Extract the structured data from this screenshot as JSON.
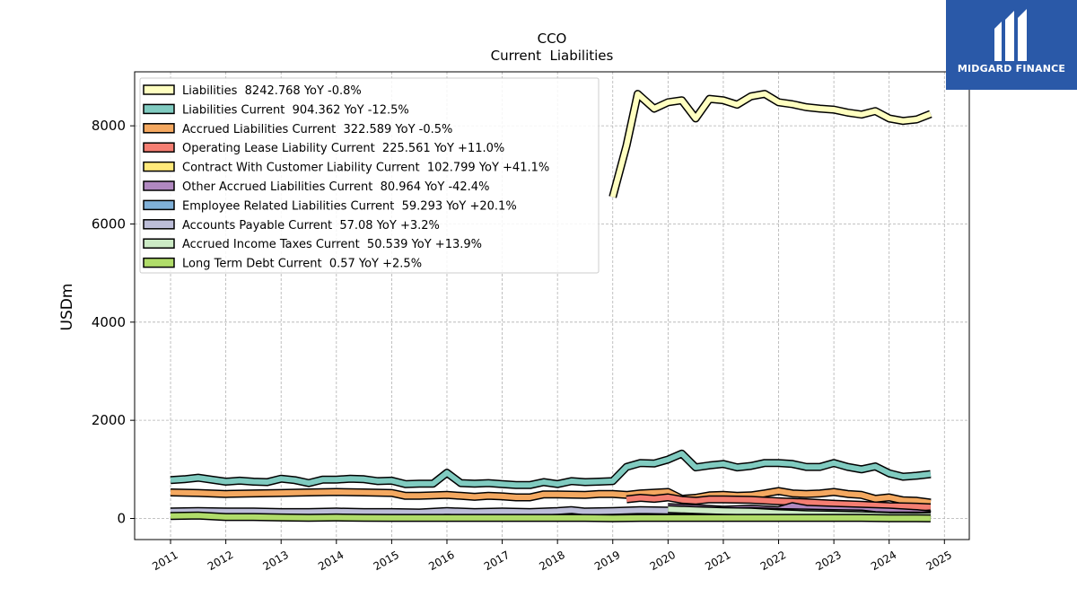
{
  "logo": {
    "text": "MIDGARD FINANCE",
    "icon": "midgard-m-logo-icon"
  },
  "chart_data": {
    "type": "line",
    "title": "CCO",
    "subtitle": "Current  Liabilities",
    "xlabel": "",
    "ylabel": "USDm",
    "xlim": [
      2010.35,
      2025.45
    ],
    "ylim": [
      -430,
      9100
    ],
    "x_ticks": [
      "2011",
      "2012",
      "2013",
      "2014",
      "2015",
      "2016",
      "2017",
      "2018",
      "2019",
      "2020",
      "2021",
      "2022",
      "2023",
      "2024",
      "2025"
    ],
    "y_ticks": [
      "0",
      "2000",
      "4000",
      "6000",
      "8000"
    ],
    "grid": true,
    "legend_position": "top-left",
    "series": [
      {
        "name": "Liabilities",
        "legend": "Liabilities  8242.768 YoY -0.8%",
        "color": "#ffffc0",
        "points": [
          [
            2019.0,
            6550
          ],
          [
            2019.25,
            7600
          ],
          [
            2019.45,
            8650
          ],
          [
            2019.6,
            8500
          ],
          [
            2019.75,
            8350
          ],
          [
            2020.0,
            8480
          ],
          [
            2020.25,
            8520
          ],
          [
            2020.5,
            8150
          ],
          [
            2020.75,
            8550
          ],
          [
            2021.0,
            8520
          ],
          [
            2021.25,
            8430
          ],
          [
            2021.5,
            8600
          ],
          [
            2021.75,
            8650
          ],
          [
            2022.0,
            8480
          ],
          [
            2022.25,
            8440
          ],
          [
            2022.5,
            8380
          ],
          [
            2022.75,
            8350
          ],
          [
            2023.0,
            8330
          ],
          [
            2023.25,
            8270
          ],
          [
            2023.5,
            8230
          ],
          [
            2023.75,
            8300
          ],
          [
            2024.0,
            8150
          ],
          [
            2024.25,
            8100
          ],
          [
            2024.5,
            8130
          ],
          [
            2024.75,
            8243
          ]
        ]
      },
      {
        "name": "Liabilities Current",
        "legend": "Liabilities Current  904.362 YoY -12.5%",
        "color": "#80cbc0",
        "points": [
          [
            2011.0,
            780
          ],
          [
            2011.25,
            800
          ],
          [
            2011.5,
            830
          ],
          [
            2011.75,
            790
          ],
          [
            2012.0,
            750
          ],
          [
            2012.25,
            770
          ],
          [
            2012.5,
            750
          ],
          [
            2012.75,
            740
          ],
          [
            2013.0,
            810
          ],
          [
            2013.25,
            780
          ],
          [
            2013.5,
            720
          ],
          [
            2013.75,
            790
          ],
          [
            2014.0,
            790
          ],
          [
            2014.25,
            810
          ],
          [
            2014.5,
            800
          ],
          [
            2014.75,
            760
          ],
          [
            2015.0,
            770
          ],
          [
            2015.25,
            700
          ],
          [
            2015.5,
            710
          ],
          [
            2015.75,
            710
          ],
          [
            2016.0,
            930
          ],
          [
            2016.25,
            720
          ],
          [
            2016.5,
            710
          ],
          [
            2016.75,
            720
          ],
          [
            2017.0,
            700
          ],
          [
            2017.25,
            680
          ],
          [
            2017.5,
            680
          ],
          [
            2017.75,
            740
          ],
          [
            2018.0,
            700
          ],
          [
            2018.25,
            760
          ],
          [
            2018.5,
            740
          ],
          [
            2018.75,
            750
          ],
          [
            2019.0,
            760
          ],
          [
            2019.25,
            1050
          ],
          [
            2019.5,
            1130
          ],
          [
            2019.75,
            1120
          ],
          [
            2020.0,
            1200
          ],
          [
            2020.25,
            1320
          ],
          [
            2020.5,
            1040
          ],
          [
            2020.75,
            1080
          ],
          [
            2021.0,
            1110
          ],
          [
            2021.25,
            1040
          ],
          [
            2021.5,
            1070
          ],
          [
            2021.75,
            1130
          ],
          [
            2022.0,
            1130
          ],
          [
            2022.25,
            1110
          ],
          [
            2022.5,
            1050
          ],
          [
            2022.75,
            1050
          ],
          [
            2023.0,
            1130
          ],
          [
            2023.25,
            1050
          ],
          [
            2023.5,
            1000
          ],
          [
            2023.75,
            1060
          ],
          [
            2024.0,
            920
          ],
          [
            2024.25,
            850
          ],
          [
            2024.5,
            870
          ],
          [
            2024.75,
            904
          ]
        ]
      },
      {
        "name": "Accrued Liabilities Current",
        "legend": "Accrued Liabilities Current  322.589 YoY -0.5%",
        "color": "#f4a860",
        "points": [
          [
            2011.0,
            530
          ],
          [
            2011.5,
            520
          ],
          [
            2012.0,
            500
          ],
          [
            2012.5,
            510
          ],
          [
            2013.0,
            520
          ],
          [
            2013.5,
            530
          ],
          [
            2014.0,
            540
          ],
          [
            2014.5,
            530
          ],
          [
            2015.0,
            520
          ],
          [
            2015.25,
            460
          ],
          [
            2015.5,
            460
          ],
          [
            2016.0,
            480
          ],
          [
            2016.25,
            460
          ],
          [
            2016.5,
            440
          ],
          [
            2016.75,
            460
          ],
          [
            2017.0,
            450
          ],
          [
            2017.25,
            430
          ],
          [
            2017.5,
            430
          ],
          [
            2017.75,
            490
          ],
          [
            2018.0,
            490
          ],
          [
            2018.5,
            480
          ],
          [
            2018.75,
            500
          ],
          [
            2019.0,
            500
          ],
          [
            2019.25,
            480
          ],
          [
            2019.5,
            510
          ],
          [
            2020.0,
            540
          ],
          [
            2020.25,
            400
          ],
          [
            2020.5,
            420
          ],
          [
            2020.75,
            470
          ],
          [
            2021.0,
            480
          ],
          [
            2021.25,
            460
          ],
          [
            2021.5,
            470
          ],
          [
            2021.75,
            510
          ],
          [
            2022.0,
            560
          ],
          [
            2022.25,
            510
          ],
          [
            2022.5,
            500
          ],
          [
            2022.75,
            510
          ],
          [
            2023.0,
            540
          ],
          [
            2023.25,
            500
          ],
          [
            2023.5,
            480
          ],
          [
            2023.75,
            400
          ],
          [
            2024.0,
            430
          ],
          [
            2024.25,
            370
          ],
          [
            2024.5,
            360
          ],
          [
            2024.75,
            323
          ]
        ]
      },
      {
        "name": "Operating Lease Liability Current",
        "legend": "Operating Lease Liability Current  225.561 YoY +11.0%",
        "color": "#f47e72",
        "points": [
          [
            2019.25,
            390
          ],
          [
            2019.5,
            420
          ],
          [
            2019.75,
            400
          ],
          [
            2020.0,
            430
          ],
          [
            2020.25,
            380
          ],
          [
            2020.5,
            360
          ],
          [
            2020.75,
            390
          ],
          [
            2021.0,
            390
          ],
          [
            2021.5,
            380
          ],
          [
            2022.0,
            350
          ],
          [
            2022.5,
            330
          ],
          [
            2023.0,
            300
          ],
          [
            2023.5,
            280
          ],
          [
            2024.0,
            250
          ],
          [
            2024.5,
            240
          ],
          [
            2024.75,
            226
          ]
        ]
      },
      {
        "name": "Contract With Customer Liability Current",
        "legend": "Contract With Customer Liability Current  102.799 YoY +41.1%",
        "color": "#ffe97a",
        "points": [
          [
            2018.0,
            120
          ],
          [
            2018.5,
            110
          ],
          [
            2019.0,
            100
          ],
          [
            2019.5,
            100
          ],
          [
            2020.0,
            110
          ],
          [
            2020.5,
            100
          ],
          [
            2021.0,
            95
          ],
          [
            2021.5,
            100
          ],
          [
            2022.0,
            110
          ],
          [
            2022.5,
            100
          ],
          [
            2023.0,
            90
          ],
          [
            2023.5,
            80
          ],
          [
            2024.0,
            75
          ],
          [
            2024.5,
            80
          ],
          [
            2024.75,
            103
          ]
        ]
      },
      {
        "name": "Other Accrued Liabilities Current",
        "legend": "Other Accrued Liabilities Current  80.964 YoY -42.4%",
        "color": "#b088c0",
        "points": [
          [
            2020.0,
            230
          ],
          [
            2020.5,
            210
          ],
          [
            2021.0,
            180
          ],
          [
            2021.5,
            200
          ],
          [
            2022.0,
            170
          ],
          [
            2022.25,
            250
          ],
          [
            2022.5,
            200
          ],
          [
            2023.0,
            180
          ],
          [
            2023.5,
            160
          ],
          [
            2024.0,
            140
          ],
          [
            2024.5,
            110
          ],
          [
            2024.75,
            81
          ]
        ]
      },
      {
        "name": "Employee Related Liabilities Current",
        "legend": "Employee Related Liabilities Current  59.293 YoY +20.1%",
        "color": "#7fb0d8",
        "points": [
          [
            2020.0,
            100
          ],
          [
            2020.5,
            90
          ],
          [
            2021.0,
            80
          ],
          [
            2021.5,
            85
          ],
          [
            2022.0,
            75
          ],
          [
            2022.5,
            70
          ],
          [
            2023.0,
            65
          ],
          [
            2023.5,
            60
          ],
          [
            2024.0,
            55
          ],
          [
            2024.5,
            50
          ],
          [
            2024.75,
            59
          ]
        ]
      },
      {
        "name": "Accounts Payable Current",
        "legend": "Accounts Payable Current  57.08 YoY +3.2%",
        "color": "#bcbdd8",
        "points": [
          [
            2011.0,
            140
          ],
          [
            2011.5,
            150
          ],
          [
            2012.0,
            140
          ],
          [
            2012.5,
            140
          ],
          [
            2013.0,
            130
          ],
          [
            2013.5,
            130
          ],
          [
            2014.0,
            140
          ],
          [
            2014.5,
            130
          ],
          [
            2015.0,
            130
          ],
          [
            2015.5,
            120
          ],
          [
            2016.0,
            150
          ],
          [
            2016.5,
            130
          ],
          [
            2017.0,
            140
          ],
          [
            2017.5,
            130
          ],
          [
            2018.0,
            150
          ],
          [
            2018.25,
            170
          ],
          [
            2018.5,
            140
          ],
          [
            2019.0,
            150
          ],
          [
            2019.5,
            170
          ],
          [
            2020.0,
            160
          ],
          [
            2020.5,
            150
          ],
          [
            2021.0,
            140
          ],
          [
            2021.5,
            150
          ],
          [
            2022.0,
            130
          ],
          [
            2022.5,
            120
          ],
          [
            2023.0,
            110
          ],
          [
            2023.5,
            100
          ],
          [
            2023.75,
            70
          ],
          [
            2024.0,
            60
          ],
          [
            2024.5,
            60
          ],
          [
            2024.75,
            57
          ]
        ]
      },
      {
        "name": "Accrued Income Taxes Current",
        "legend": "Accrued Income Taxes Current  50.539 YoY +13.9%",
        "color": "#ccebc5",
        "points": [
          [
            2020.0,
            190
          ],
          [
            2020.25,
            180
          ],
          [
            2020.5,
            170
          ],
          [
            2021.0,
            150
          ],
          [
            2021.5,
            140
          ],
          [
            2022.0,
            110
          ],
          [
            2022.5,
            90
          ],
          [
            2023.0,
            80
          ],
          [
            2023.5,
            70
          ],
          [
            2024.0,
            50
          ],
          [
            2024.5,
            45
          ],
          [
            2024.75,
            51
          ]
        ]
      },
      {
        "name": "Long Term Debt Current",
        "legend": "Long Term Debt Current  0.57 YoY +2.5%",
        "color": "#b0dc6a",
        "points": [
          [
            2011.0,
            50
          ],
          [
            2011.5,
            60
          ],
          [
            2012.0,
            30
          ],
          [
            2012.5,
            30
          ],
          [
            2013.0,
            20
          ],
          [
            2013.5,
            15
          ],
          [
            2014.0,
            20
          ],
          [
            2014.5,
            15
          ],
          [
            2015.0,
            10
          ],
          [
            2015.5,
            10
          ],
          [
            2016.0,
            10
          ],
          [
            2016.5,
            10
          ],
          [
            2017.0,
            10
          ],
          [
            2017.5,
            10
          ],
          [
            2018.0,
            10
          ],
          [
            2018.5,
            10
          ],
          [
            2019.0,
            5
          ],
          [
            2019.5,
            10
          ],
          [
            2020.0,
            10
          ],
          [
            2020.5,
            10
          ],
          [
            2021.0,
            10
          ],
          [
            2021.5,
            10
          ],
          [
            2022.0,
            10
          ],
          [
            2022.5,
            10
          ],
          [
            2023.0,
            10
          ],
          [
            2023.5,
            10
          ],
          [
            2024.0,
            5
          ],
          [
            2024.5,
            5
          ],
          [
            2024.75,
            1
          ]
        ]
      }
    ]
  }
}
